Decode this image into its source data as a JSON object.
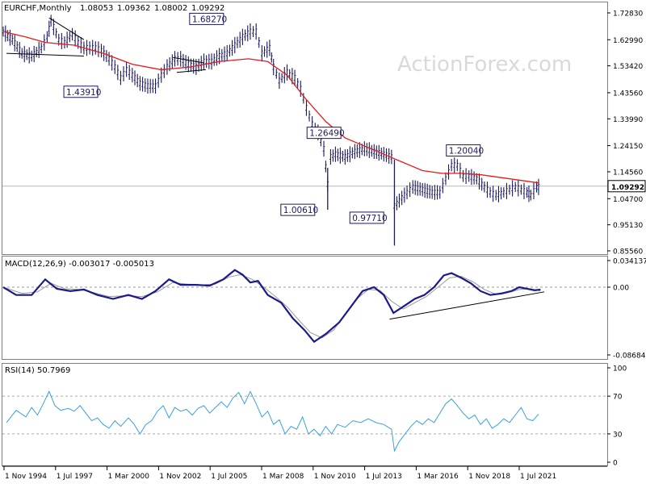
{
  "chart_data": {
    "type": "line",
    "symbol_title": "EURCHF,Monthly",
    "ohlc_header": [
      "1.08053",
      "1.09362",
      "1.08002",
      "1.09292"
    ],
    "watermark": "ActionForex.com",
    "x_labels": [
      "1 Nov 1994",
      "1 Jul 1997",
      "1 Mar 2000",
      "1 Nov 2002",
      "1 Jul 2005",
      "1 Mar 2008",
      "1 Nov 2010",
      "1 Jul 2013",
      "1 Mar 2016",
      "1 Nov 2018",
      "1 Jul 2021"
    ],
    "price_panel": {
      "y_ticks": [
        "1.72830",
        "1.62990",
        "1.53420",
        "1.43560",
        "1.33990",
        "1.24150",
        "1.14560",
        "1.04700",
        "0.95130",
        "0.85560"
      ],
      "ylim": [
        0.8556,
        1.7283
      ],
      "current_price": "1.09292",
      "current_price_value": 1.09292,
      "annotations": [
        {
          "text": "1.68270",
          "date": 2006.3,
          "value": 1.6827
        },
        {
          "text": "1.43910",
          "date": 2000.3,
          "value": 1.4391
        },
        {
          "text": "1.26490",
          "date": 2011.2,
          "value": 1.2649
        },
        {
          "text": "1.00610",
          "date": 2011.6,
          "value": 1.0061
        },
        {
          "text": "0.97710",
          "date": 2015.0,
          "value": 0.9771
        },
        {
          "text": "1.20040",
          "date": 2017.9,
          "value": 1.2004
        }
      ],
      "price_series": [
        [
          1994.83,
          1.66
        ],
        [
          1995.3,
          1.63
        ],
        [
          1995.8,
          1.58
        ],
        [
          1996.3,
          1.57
        ],
        [
          1996.8,
          1.6
        ],
        [
          1997.1,
          1.64
        ],
        [
          1997.3,
          1.7
        ],
        [
          1997.7,
          1.63
        ],
        [
          1998.0,
          1.62
        ],
        [
          1998.4,
          1.65
        ],
        [
          1998.7,
          1.62
        ],
        [
          1999.0,
          1.6
        ],
        [
          1999.3,
          1.6
        ],
        [
          1999.6,
          1.6
        ],
        [
          1999.9,
          1.59
        ],
        [
          2000.3,
          1.56
        ],
        [
          2000.6,
          1.53
        ],
        [
          2000.9,
          1.49
        ],
        [
          2001.2,
          1.52
        ],
        [
          2001.5,
          1.5
        ],
        [
          2001.9,
          1.47
        ],
        [
          2002.3,
          1.46
        ],
        [
          2002.7,
          1.46
        ],
        [
          2003.0,
          1.5
        ],
        [
          2003.3,
          1.53
        ],
        [
          2003.7,
          1.56
        ],
        [
          2004.0,
          1.56
        ],
        [
          2004.4,
          1.54
        ],
        [
          2004.8,
          1.53
        ],
        [
          2005.2,
          1.55
        ],
        [
          2005.6,
          1.55
        ],
        [
          2006.0,
          1.57
        ],
        [
          2006.4,
          1.58
        ],
        [
          2006.8,
          1.61
        ],
        [
          2007.2,
          1.64
        ],
        [
          2007.6,
          1.66
        ],
        [
          2007.9,
          1.66
        ],
        [
          2008.2,
          1.58
        ],
        [
          2008.6,
          1.6
        ],
        [
          2008.8,
          1.53
        ],
        [
          2009.1,
          1.48
        ],
        [
          2009.5,
          1.51
        ],
        [
          2009.9,
          1.49
        ],
        [
          2010.2,
          1.45
        ],
        [
          2010.5,
          1.38
        ],
        [
          2010.8,
          1.32
        ],
        [
          2011.1,
          1.29
        ],
        [
          2011.4,
          1.23
        ],
        [
          2011.6,
          1.1
        ],
        [
          2011.75,
          1.2
        ],
        [
          2012.0,
          1.21
        ],
        [
          2012.5,
          1.2
        ],
        [
          2013.0,
          1.22
        ],
        [
          2013.5,
          1.23
        ],
        [
          2014.0,
          1.22
        ],
        [
          2014.5,
          1.21
        ],
        [
          2014.9,
          1.2
        ],
        [
          2015.05,
          1.02
        ],
        [
          2015.3,
          1.04
        ],
        [
          2015.7,
          1.07
        ],
        [
          2016.0,
          1.09
        ],
        [
          2016.5,
          1.08
        ],
        [
          2017.0,
          1.07
        ],
        [
          2017.4,
          1.07
        ],
        [
          2017.7,
          1.12
        ],
        [
          2018.0,
          1.17
        ],
        [
          2018.3,
          1.17
        ],
        [
          2018.6,
          1.13
        ],
        [
          2018.9,
          1.13
        ],
        [
          2019.3,
          1.12
        ],
        [
          2019.7,
          1.09
        ],
        [
          2020.0,
          1.07
        ],
        [
          2020.3,
          1.06
        ],
        [
          2020.7,
          1.07
        ],
        [
          2021.0,
          1.08
        ],
        [
          2021.3,
          1.09
        ],
        [
          2021.6,
          1.08
        ],
        [
          2021.9,
          1.07
        ],
        [
          2022.1,
          1.06
        ],
        [
          2022.4,
          1.09
        ],
        [
          2022.6,
          1.09
        ]
      ],
      "ma_series": [
        [
          1994.83,
          1.66
        ],
        [
          1996.0,
          1.64
        ],
        [
          1997.0,
          1.62
        ],
        [
          1998.5,
          1.61
        ],
        [
          2000.0,
          1.58
        ],
        [
          2001.5,
          1.54
        ],
        [
          2003.0,
          1.52
        ],
        [
          2004.5,
          1.53
        ],
        [
          2006.0,
          1.55
        ],
        [
          2007.5,
          1.56
        ],
        [
          2008.5,
          1.55
        ],
        [
          2009.5,
          1.5
        ],
        [
          2010.5,
          1.41
        ],
        [
          2011.5,
          1.33
        ],
        [
          2012.5,
          1.27
        ],
        [
          2013.5,
          1.24
        ],
        [
          2014.5,
          1.21
        ],
        [
          2015.5,
          1.18
        ],
        [
          2016.5,
          1.15
        ],
        [
          2017.5,
          1.14
        ],
        [
          2018.5,
          1.14
        ],
        [
          2019.5,
          1.135
        ],
        [
          2020.5,
          1.125
        ],
        [
          2021.5,
          1.115
        ],
        [
          2022.5,
          1.105
        ]
      ],
      "trendlines": [
        [
          [
            1997.2,
            1.71
          ],
          [
            1999.0,
            1.63
          ]
        ],
        [
          [
            1995.0,
            1.58
          ],
          [
            1999.0,
            1.57
          ]
        ],
        [
          [
            2003.6,
            1.565
          ],
          [
            2005.2,
            1.545
          ]
        ],
        [
          [
            2003.8,
            1.51
          ],
          [
            2005.3,
            1.52
          ]
        ]
      ]
    },
    "macd_panel": {
      "label": "MACD(12,26,9) -0.003017 -0.005013",
      "y_ticks": [
        "0.034137",
        "0.00",
        "-0.086849"
      ],
      "ylim": [
        -0.086849,
        0.034137
      ],
      "zero_value": 0.0,
      "macd_series": [
        [
          1994.83,
          0.0
        ],
        [
          1995.5,
          -0.01
        ],
        [
          1996.3,
          -0.01
        ],
        [
          1997.0,
          0.01
        ],
        [
          1997.6,
          -0.002
        ],
        [
          1998.3,
          -0.005
        ],
        [
          1999.0,
          -0.003
        ],
        [
          1999.7,
          -0.01
        ],
        [
          2000.5,
          -0.015
        ],
        [
          2001.3,
          -0.01
        ],
        [
          2002.0,
          -0.015
        ],
        [
          2002.7,
          -0.005
        ],
        [
          2003.4,
          0.01
        ],
        [
          2004.0,
          0.003
        ],
        [
          2004.8,
          0.003
        ],
        [
          2005.5,
          0.002
        ],
        [
          2006.2,
          0.01
        ],
        [
          2006.8,
          0.022
        ],
        [
          2007.2,
          0.016
        ],
        [
          2007.6,
          0.006
        ],
        [
          2008.0,
          0.008
        ],
        [
          2008.5,
          -0.01
        ],
        [
          2009.2,
          -0.02
        ],
        [
          2009.8,
          -0.04
        ],
        [
          2010.4,
          -0.055
        ],
        [
          2010.9,
          -0.07
        ],
        [
          2011.5,
          -0.06
        ],
        [
          2012.2,
          -0.045
        ],
        [
          2012.8,
          -0.025
        ],
        [
          2013.4,
          -0.005
        ],
        [
          2014.0,
          0.0
        ],
        [
          2014.5,
          -0.01
        ],
        [
          2015.0,
          -0.033
        ],
        [
          2015.5,
          -0.025
        ],
        [
          2016.1,
          -0.015
        ],
        [
          2016.6,
          -0.01
        ],
        [
          2017.1,
          0.0
        ],
        [
          2017.6,
          0.015
        ],
        [
          2018.0,
          0.018
        ],
        [
          2018.5,
          0.012
        ],
        [
          2019.0,
          0.005
        ],
        [
          2019.5,
          -0.005
        ],
        [
          2020.0,
          -0.01
        ],
        [
          2020.6,
          -0.008
        ],
        [
          2021.1,
          -0.005
        ],
        [
          2021.5,
          0.0
        ],
        [
          2021.9,
          -0.002
        ],
        [
          2022.3,
          -0.004
        ],
        [
          2022.6,
          -0.003
        ]
      ],
      "signal_series": [
        [
          1994.83,
          0.0
        ],
        [
          1995.8,
          -0.008
        ],
        [
          1996.6,
          -0.006
        ],
        [
          1997.3,
          0.005
        ],
        [
          1998.0,
          -0.002
        ],
        [
          1998.8,
          -0.003
        ],
        [
          1999.5,
          -0.007
        ],
        [
          2000.3,
          -0.012
        ],
        [
          2001.2,
          -0.011
        ],
        [
          2002.0,
          -0.012
        ],
        [
          2002.8,
          -0.006
        ],
        [
          2003.6,
          0.006
        ],
        [
          2004.3,
          0.004
        ],
        [
          2005.1,
          0.003
        ],
        [
          2005.8,
          0.004
        ],
        [
          2006.5,
          0.013
        ],
        [
          2007.1,
          0.016
        ],
        [
          2007.7,
          0.01
        ],
        [
          2008.3,
          0.0
        ],
        [
          2008.9,
          -0.012
        ],
        [
          2009.5,
          -0.025
        ],
        [
          2010.1,
          -0.042
        ],
        [
          2010.7,
          -0.058
        ],
        [
          2011.3,
          -0.065
        ],
        [
          2011.9,
          -0.055
        ],
        [
          2012.5,
          -0.035
        ],
        [
          2013.1,
          -0.015
        ],
        [
          2013.7,
          -0.003
        ],
        [
          2014.3,
          -0.004
        ],
        [
          2014.9,
          -0.018
        ],
        [
          2015.5,
          -0.028
        ],
        [
          2016.1,
          -0.02
        ],
        [
          2016.7,
          -0.012
        ],
        [
          2017.3,
          0.0
        ],
        [
          2017.9,
          0.012
        ],
        [
          2018.5,
          0.014
        ],
        [
          2019.1,
          0.007
        ],
        [
          2019.7,
          -0.003
        ],
        [
          2020.3,
          -0.009
        ],
        [
          2020.9,
          -0.007
        ],
        [
          2021.5,
          -0.003
        ],
        [
          2022.1,
          -0.002
        ],
        [
          2022.6,
          -0.005
        ]
      ],
      "trendlines": [
        [
          [
            2014.8,
            -0.041
          ],
          [
            2022.8,
            -0.006
          ]
        ]
      ]
    },
    "rsi_panel": {
      "label": "RSI(14) 50.7969",
      "y_ticks": [
        "100",
        "70",
        "30",
        "0"
      ],
      "ylim": [
        0,
        100
      ],
      "levels": [
        70,
        30
      ],
      "rsi_series": [
        [
          1995.0,
          42
        ],
        [
          1995.5,
          55
        ],
        [
          1996.0,
          48
        ],
        [
          1996.3,
          58
        ],
        [
          1996.6,
          50
        ],
        [
          1996.9,
          62
        ],
        [
          1997.2,
          75
        ],
        [
          1997.5,
          60
        ],
        [
          1997.8,
          55
        ],
        [
          1998.2,
          57
        ],
        [
          1998.5,
          54
        ],
        [
          1998.8,
          60
        ],
        [
          1999.1,
          52
        ],
        [
          1999.4,
          44
        ],
        [
          1999.7,
          47
        ],
        [
          2000.0,
          40
        ],
        [
          2000.3,
          36
        ],
        [
          2000.6,
          44
        ],
        [
          2000.9,
          38
        ],
        [
          2001.3,
          47
        ],
        [
          2001.6,
          40
        ],
        [
          2001.9,
          30
        ],
        [
          2002.2,
          40
        ],
        [
          2002.5,
          44
        ],
        [
          2002.8,
          54
        ],
        [
          2003.1,
          60
        ],
        [
          2003.4,
          47
        ],
        [
          2003.7,
          58
        ],
        [
          2004.0,
          54
        ],
        [
          2004.3,
          56
        ],
        [
          2004.6,
          50
        ],
        [
          2004.9,
          57
        ],
        [
          2005.2,
          60
        ],
        [
          2005.5,
          52
        ],
        [
          2005.8,
          58
        ],
        [
          2006.1,
          64
        ],
        [
          2006.4,
          58
        ],
        [
          2006.7,
          68
        ],
        [
          2007.0,
          74
        ],
        [
          2007.3,
          62
        ],
        [
          2007.6,
          75
        ],
        [
          2007.9,
          62
        ],
        [
          2008.2,
          48
        ],
        [
          2008.5,
          54
        ],
        [
          2008.8,
          40
        ],
        [
          2009.1,
          45
        ],
        [
          2009.4,
          30
        ],
        [
          2009.7,
          38
        ],
        [
          2010.0,
          35
        ],
        [
          2010.3,
          48
        ],
        [
          2010.6,
          30
        ],
        [
          2010.9,
          35
        ],
        [
          2011.2,
          28
        ],
        [
          2011.5,
          38
        ],
        [
          2011.8,
          30
        ],
        [
          2012.1,
          40
        ],
        [
          2012.5,
          37
        ],
        [
          2012.9,
          44
        ],
        [
          2013.3,
          42
        ],
        [
          2013.7,
          46
        ],
        [
          2014.1,
          42
        ],
        [
          2014.5,
          40
        ],
        [
          2014.9,
          35
        ],
        [
          2015.05,
          12
        ],
        [
          2015.3,
          22
        ],
        [
          2015.6,
          30
        ],
        [
          2015.9,
          38
        ],
        [
          2016.2,
          44
        ],
        [
          2016.5,
          40
        ],
        [
          2016.8,
          46
        ],
        [
          2017.1,
          42
        ],
        [
          2017.4,
          52
        ],
        [
          2017.7,
          62
        ],
        [
          2018.0,
          67
        ],
        [
          2018.3,
          60
        ],
        [
          2018.6,
          52
        ],
        [
          2018.9,
          46
        ],
        [
          2019.2,
          50
        ],
        [
          2019.5,
          40
        ],
        [
          2019.8,
          46
        ],
        [
          2020.1,
          36
        ],
        [
          2020.4,
          40
        ],
        [
          2020.7,
          46
        ],
        [
          2021.0,
          42
        ],
        [
          2021.3,
          50
        ],
        [
          2021.6,
          58
        ],
        [
          2021.9,
          46
        ],
        [
          2022.2,
          44
        ],
        [
          2022.5,
          51
        ]
      ]
    }
  }
}
